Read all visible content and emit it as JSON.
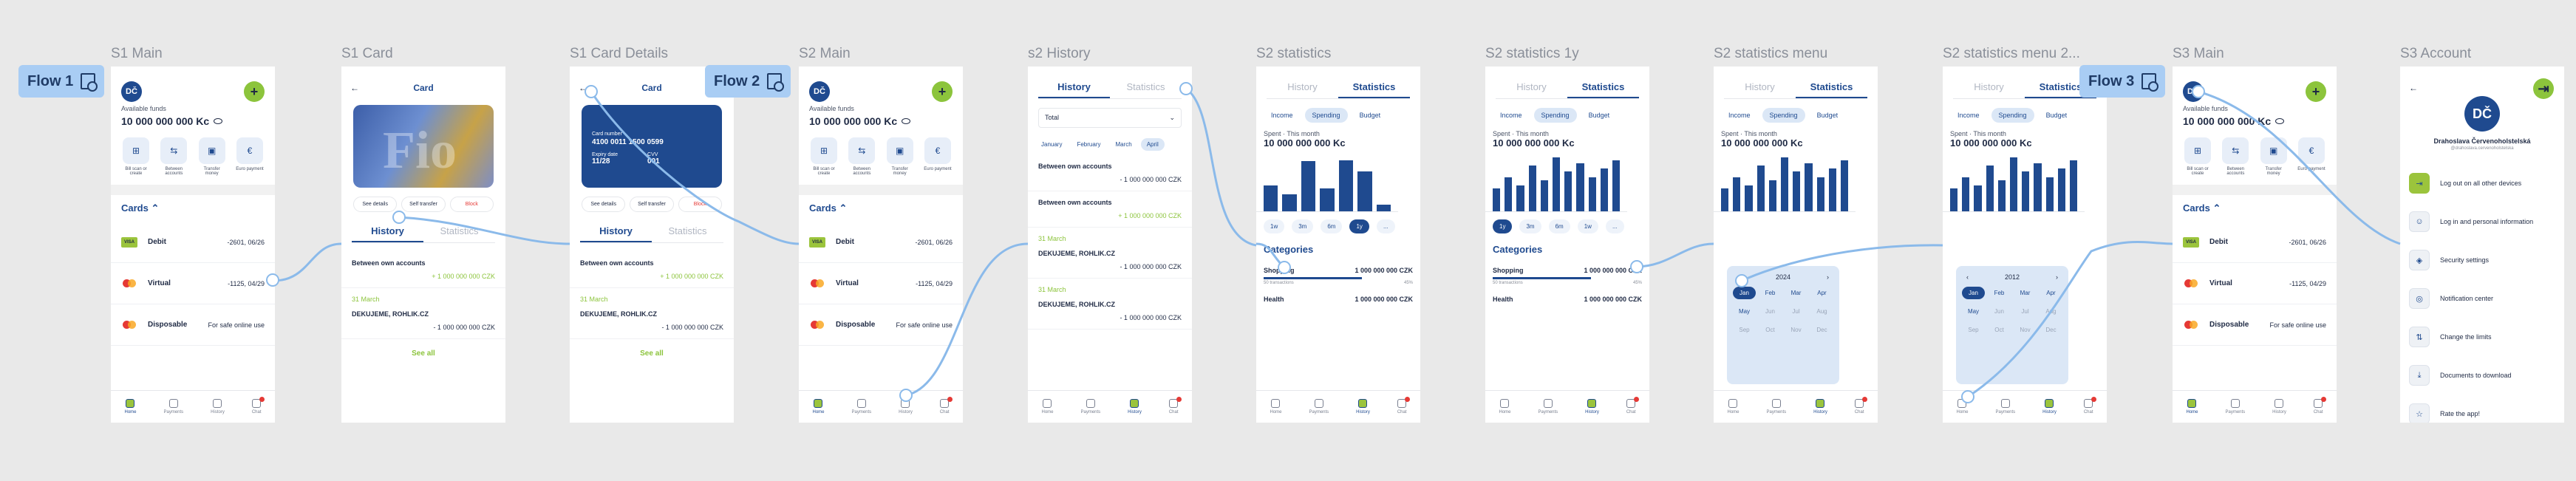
{
  "frames": {
    "s1_main": "S1 Main",
    "s1_card": "S1 Card",
    "s1_card_details": "S1 Card Details",
    "s2_main": "S2 Main",
    "s2_history": "s2 History",
    "s2_statistics": "S2 statistics",
    "s2_statistics_1y": "S2 statistics 1y",
    "s2_statistics_menu": "S2 statistics menu",
    "s2_statistics_menu2": "S2 statistics menu 2...",
    "s3_main": "S3 Main",
    "s3_account": "S3 Account"
  },
  "flows": {
    "flow1": "Flow 1",
    "flow2": "Flow 2",
    "flow3": "Flow 3"
  },
  "main": {
    "avatar": "DČ",
    "plus": "+",
    "funds_label": "Available funds",
    "funds": "10 000 000 000 Kc",
    "actions": [
      "Bill scan or create",
      "Between accounts",
      "Transfer money",
      "Euro payment"
    ],
    "cards_header": "Cards ⌃",
    "cards": [
      {
        "logo": "VISA",
        "name": "Debit",
        "value": "-2601, 06/26"
      },
      {
        "logo": "",
        "name": "Virtual",
        "value": "-1125, 04/29"
      },
      {
        "logo": "",
        "name": "Disposable",
        "value": "For safe online use"
      }
    ]
  },
  "nav": [
    "Home",
    "Payments",
    "History",
    "Chat"
  ],
  "card": {
    "back": "←",
    "title": "Card",
    "card_art": "Fio",
    "see_details": "See details",
    "self_transfer": "Self transfer",
    "block": "Block",
    "card_number_label": "Card number",
    "card_number": "4100 0011 1500 0599",
    "expiry_label": "Expiry date",
    "expiry": "11/28",
    "cvv_label": "CVV",
    "cvv": "001"
  },
  "history": {
    "tab_history": "History",
    "tab_statistics": "Statistics",
    "select": "Total",
    "months": [
      "January",
      "February",
      "March",
      "April"
    ],
    "rows": [
      {
        "title": "Between own accounts",
        "value": "+ 1 000 000 000 CZK"
      },
      {
        "title": "Between own accounts",
        "value": "- 1 000 000 000 CZK"
      }
    ],
    "date": "31 March",
    "row3": {
      "title": "DEKUJEME, ROHLIK.CZ",
      "value": "- 1 000 000 000 CZK"
    },
    "see_all": "See all"
  },
  "stats": {
    "pills": [
      "Income",
      "Spending",
      "Budget"
    ],
    "spent_label": "Spent",
    "spent_sub": "This month",
    "spent": "10 000 000 000 Kc",
    "periods": [
      "1y",
      "3m",
      "6m",
      "1w"
    ],
    "period_more": "...",
    "categories": "Categories",
    "cats": [
      {
        "name": "Shopping",
        "value": "1 000 000 000 CZK",
        "sub": "50 transactions",
        "pct": "45%"
      },
      {
        "name": "Health",
        "value": "1 000 000 000 CZK",
        "sub": "",
        "pct": ""
      }
    ],
    "year1": "2024",
    "year2": "2012",
    "months12": [
      "Jan",
      "Feb",
      "Mar",
      "Apr",
      "May",
      "Jun",
      "Jul",
      "Aug",
      "Sep",
      "Oct",
      "Nov",
      "Dec"
    ]
  },
  "account": {
    "avatar": "DČ",
    "name": "Drahoslava Červenoholstelská",
    "handle": "@drahoslava.cervenoholstelska",
    "items": [
      "Log out on all other devices",
      "Log in and personal information",
      "Security settings",
      "Notification center",
      "Change the limits",
      "Documents to download",
      "Rate the app!"
    ]
  }
}
